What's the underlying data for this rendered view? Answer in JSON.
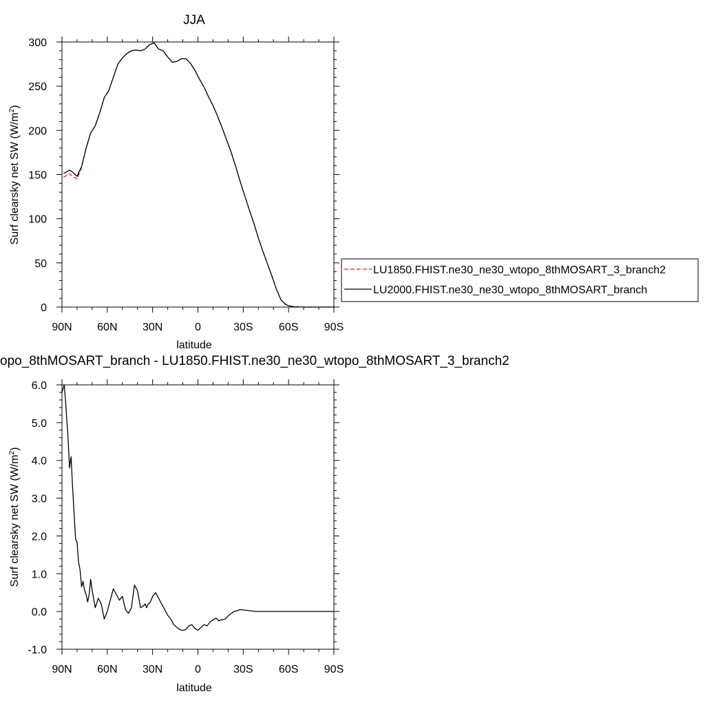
{
  "chart_data": [
    {
      "type": "line",
      "title": "JJA",
      "xlabel": "latitude",
      "ylabel": "Surf clearsky net SW (W/m",
      "ylabel_sup": "2",
      "ylabel_close": ")",
      "xlim": [
        90,
        -90
      ],
      "ylim": [
        0,
        300
      ],
      "xticks": [
        90,
        60,
        30,
        0,
        -30,
        -60,
        -90
      ],
      "xtick_labels": [
        "90N",
        "60N",
        "30N",
        "0",
        "30S",
        "60S",
        "90S"
      ],
      "yticks": [
        0,
        50,
        100,
        150,
        200,
        250,
        300
      ],
      "ytick_labels": [
        "0",
        "50",
        "100",
        "150",
        "200",
        "250",
        "300"
      ],
      "legend_position": "right",
      "series": [
        {
          "name": "LU1850.FHIST.ne30_ne30_wtopo_8thMOSART_3_branch2",
          "color": "#d62020",
          "dash": true,
          "x": [
            89,
            87,
            85,
            83,
            80,
            77,
            74,
            71,
            68,
            65,
            62,
            59,
            56,
            53,
            50,
            47,
            44,
            41,
            38,
            35,
            32,
            29,
            26,
            23,
            20,
            17,
            14,
            11,
            8,
            5,
            2,
            -1,
            -4,
            -7,
            -10,
            -13,
            -16,
            -19,
            -22,
            -25,
            -28,
            -31,
            -34,
            -37,
            -40,
            -43,
            -46,
            -49,
            -52,
            -55,
            -58,
            -60,
            -62,
            -64,
            -66,
            -68,
            -70,
            -72,
            -75,
            -80,
            -85,
            -90
          ],
          "values": [
            147,
            149,
            151,
            148,
            145,
            158,
            180,
            197,
            205,
            220,
            237,
            245,
            260,
            275,
            282,
            287,
            290,
            291,
            290,
            292,
            297,
            299,
            292,
            290,
            283,
            277,
            278,
            281,
            281,
            276,
            268,
            258,
            249,
            238,
            228,
            216,
            203,
            189,
            175,
            159,
            142,
            126,
            110,
            95,
            78,
            63,
            49,
            35,
            20,
            8,
            3,
            1.5,
            0.8,
            0.4,
            0.2,
            0.1,
            0,
            0,
            0,
            0,
            0,
            0
          ]
        },
        {
          "name": "LU2000.FHIST.ne30_ne30_wtopo_8thMOSART_branch",
          "color": "#000000",
          "dash": false,
          "x": [
            89,
            87,
            85,
            83,
            80,
            77,
            74,
            71,
            68,
            65,
            62,
            59,
            56,
            53,
            50,
            47,
            44,
            41,
            38,
            35,
            32,
            29,
            26,
            23,
            20,
            17,
            14,
            11,
            8,
            5,
            2,
            -1,
            -4,
            -7,
            -10,
            -13,
            -16,
            -19,
            -22,
            -25,
            -28,
            -31,
            -34,
            -37,
            -40,
            -43,
            -46,
            -49,
            -52,
            -55,
            -58,
            -60,
            -62,
            -64,
            -66,
            -68,
            -70,
            -72,
            -75,
            -80,
            -85,
            -90
          ],
          "values": [
            151,
            153,
            155,
            153,
            148,
            159,
            180,
            197,
            205,
            220,
            237,
            245,
            260,
            275,
            282,
            287,
            290,
            291,
            290,
            292,
            297,
            299,
            292,
            290,
            283,
            277,
            278,
            281,
            281,
            276,
            268,
            258,
            249,
            238,
            228,
            216,
            203,
            189,
            175,
            159,
            142,
            126,
            110,
            95,
            78,
            63,
            49,
            35,
            20,
            8,
            3,
            1.5,
            0.8,
            0.4,
            0.2,
            0.1,
            0,
            0,
            0,
            0,
            0,
            0
          ]
        }
      ]
    },
    {
      "type": "line",
      "title": "opo_8thMOSART_branch - LU1850.FHIST.ne30_ne30_wtopo_8thMOSART_3_branch2",
      "xlabel": "latitude",
      "ylabel": "Surf clearsky net SW (W/m",
      "ylabel_sup": "2",
      "ylabel_close": ")",
      "xlim": [
        90,
        -90
      ],
      "ylim": [
        -1.0,
        6.0
      ],
      "xticks": [
        90,
        60,
        30,
        0,
        -30,
        -60,
        -90
      ],
      "xtick_labels": [
        "90N",
        "60N",
        "30N",
        "0",
        "30S",
        "60S",
        "90S"
      ],
      "yticks": [
        6,
        5,
        4,
        3,
        2,
        1,
        0,
        -1
      ],
      "ytick_labels": [
        "6.0",
        "5.0",
        "4.0",
        "3.0",
        "2.0",
        "1.0",
        "0.0",
        "-1.0"
      ],
      "series": [
        {
          "name": "",
          "color": "#000000",
          "dash": false,
          "x": [
            90,
            88.5,
            87.5,
            86,
            85,
            84,
            83,
            82,
            81,
            80,
            79,
            78,
            77,
            76,
            75,
            74,
            73,
            72,
            71,
            70,
            68,
            66,
            64,
            62,
            60,
            58,
            56,
            54,
            52,
            50,
            48,
            46,
            44,
            42,
            40,
            38,
            36,
            35,
            34,
            33,
            32,
            31,
            30,
            28,
            26,
            24,
            22,
            20,
            18,
            16,
            14,
            12,
            10,
            8,
            6,
            4,
            2,
            0,
            -2,
            -4,
            -6,
            -8,
            -10,
            -12,
            -14,
            -15,
            -16,
            -18,
            -20,
            -22,
            -24,
            -26,
            -28,
            -30,
            -34,
            -38,
            -40,
            -45,
            -50,
            -55,
            -60,
            -65,
            -70,
            -75,
            -80,
            -90
          ],
          "values": [
            5.8,
            6.0,
            5.5,
            4.6,
            3.8,
            4.1,
            3.3,
            2.6,
            1.9,
            1.85,
            1.3,
            1.1,
            0.65,
            0.8,
            0.55,
            0.45,
            0.25,
            0.45,
            0.85,
            0.55,
            0.1,
            0.35,
            0.2,
            -0.2,
            0.0,
            0.3,
            0.6,
            0.45,
            0.3,
            0.4,
            0.05,
            -0.05,
            0.1,
            0.7,
            0.55,
            0.1,
            0.15,
            0.2,
            0.1,
            0.2,
            0.22,
            0.3,
            0.4,
            0.5,
            0.35,
            0.2,
            0.05,
            -0.1,
            -0.2,
            -0.35,
            -0.42,
            -0.48,
            -0.5,
            -0.48,
            -0.38,
            -0.35,
            -0.45,
            -0.5,
            -0.42,
            -0.35,
            -0.38,
            -0.28,
            -0.22,
            -0.18,
            -0.25,
            -0.22,
            -0.22,
            -0.2,
            -0.12,
            -0.05,
            0.0,
            0.02,
            0.05,
            0.04,
            0.02,
            0.0,
            0.0,
            0.0,
            0.0,
            0.0,
            0.0,
            0.0,
            0.0,
            0.0,
            0.0,
            0.0
          ]
        }
      ]
    }
  ]
}
